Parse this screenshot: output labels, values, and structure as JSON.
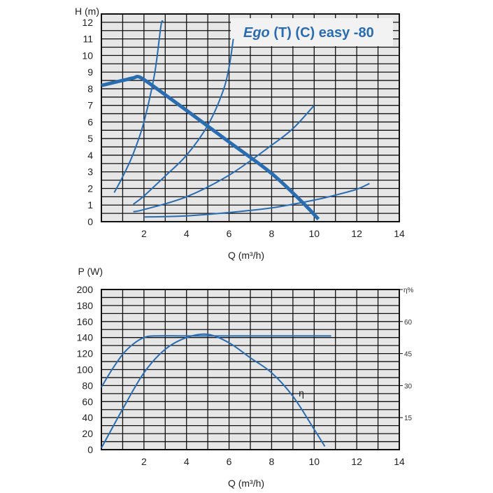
{
  "colors": {
    "curve": "#2a6cb0",
    "grid_bg": "#e6e6e6",
    "grid_line": "#111111"
  },
  "chart_data": [
    {
      "type": "line",
      "title_italic": "Ego",
      "title_rest": " (T) (C) easy -80",
      "xlabel": "Q (m³/h)",
      "ylabel": "H (m)",
      "xlim": [
        0,
        14
      ],
      "ylim": [
        0,
        12.5
      ],
      "xticks": [
        2,
        4,
        6,
        8,
        10,
        12,
        14
      ],
      "yticks": [
        0,
        1,
        2,
        3,
        4,
        5,
        6,
        7,
        8,
        9,
        10,
        11,
        12
      ],
      "grid": true,
      "series": [
        {
          "role": "pump-curve",
          "points": [
            [
              0,
              8.2
            ],
            [
              0.5,
              8.35
            ],
            [
              1,
              8.5
            ],
            [
              1.5,
              8.65
            ],
            [
              1.8,
              8.7
            ],
            [
              2.5,
              8.1
            ],
            [
              4,
              6.7
            ],
            [
              6,
              4.8
            ],
            [
              8,
              2.9
            ],
            [
              9.5,
              1.1
            ],
            [
              10.2,
              0.15
            ]
          ]
        },
        {
          "role": "system-curve",
          "points": [
            [
              0.6,
              1.75
            ],
            [
              1,
              2.7
            ],
            [
              1.5,
              4.1
            ],
            [
              2,
              6.0
            ],
            [
              2.5,
              8.9
            ],
            [
              2.8,
              11.8
            ],
            [
              2.9,
              12.0
            ]
          ]
        },
        {
          "role": "system-curve",
          "points": [
            [
              1.5,
              1.05
            ],
            [
              2,
              1.55
            ],
            [
              3,
              2.75
            ],
            [
              4,
              4.0
            ],
            [
              5,
              5.8
            ],
            [
              5.7,
              7.8
            ],
            [
              6,
              9.3
            ],
            [
              6.2,
              11.0
            ]
          ]
        },
        {
          "role": "system-curve",
          "points": [
            [
              1.5,
              0.6
            ],
            [
              2,
              0.73
            ],
            [
              4,
              1.5
            ],
            [
              6,
              2.8
            ],
            [
              8,
              4.6
            ],
            [
              9,
              5.6
            ],
            [
              10,
              7.0
            ]
          ]
        },
        {
          "role": "system-curve",
          "points": [
            [
              2,
              0.28
            ],
            [
              4,
              0.35
            ],
            [
              6,
              0.55
            ],
            [
              8,
              0.83
            ],
            [
              10,
              1.3
            ],
            [
              11,
              1.6
            ],
            [
              12,
              1.95
            ],
            [
              12.6,
              2.3
            ]
          ]
        }
      ]
    },
    {
      "type": "line",
      "xlabel": "Q (m³/h)",
      "ylabel": "P (W)",
      "y2label": "η%",
      "xlim": [
        0,
        14
      ],
      "ylim": [
        0,
        200
      ],
      "y2lim": [
        0,
        75
      ],
      "xticks": [
        2,
        4,
        6,
        8,
        10,
        12,
        14
      ],
      "yticks": [
        0,
        20,
        40,
        60,
        80,
        100,
        120,
        140,
        160,
        180,
        200
      ],
      "y2ticks": [
        15,
        30,
        45,
        60
      ],
      "grid": true,
      "series": [
        {
          "name": "",
          "role": "power",
          "points": [
            [
              0,
              78
            ],
            [
              0.5,
              100
            ],
            [
              1,
              119
            ],
            [
              1.5,
              132
            ],
            [
              2,
              140
            ],
            [
              2.5,
              142
            ],
            [
              4,
              142
            ],
            [
              6,
              142
            ],
            [
              8,
              142
            ],
            [
              10,
              142
            ],
            [
              10.8,
              142
            ]
          ]
        },
        {
          "name": "η",
          "role": "efficiency",
          "points": [
            [
              0,
              0.8
            ],
            [
              1,
              19
            ],
            [
              2,
              36
            ],
            [
              3,
              47
            ],
            [
              4,
              52.5
            ],
            [
              5,
              54
            ],
            [
              6,
              50
            ],
            [
              7,
              43
            ],
            [
              8,
              36
            ],
            [
              9,
              25
            ],
            [
              10,
              9.5
            ],
            [
              10.5,
              1.5
            ]
          ]
        }
      ]
    }
  ]
}
